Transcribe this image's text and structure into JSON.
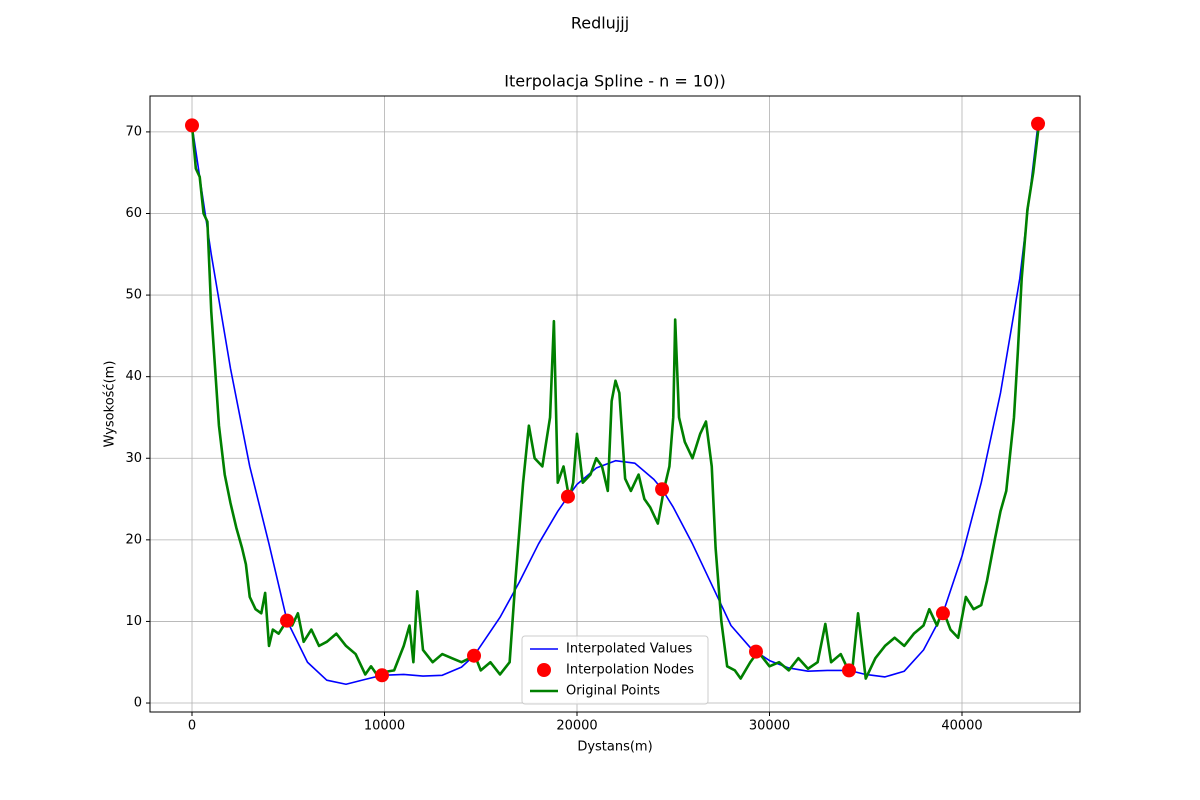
{
  "chart_data": {
    "type": "line",
    "suptitle": "Redlujjj",
    "title": "Iterpolacja Spline - n = 10))",
    "x_label": "Dystans(m)",
    "y_label": "Wysokość(m)",
    "xlim": [
      -2182,
      46130
    ],
    "ylim": [
      -1.1,
      74.4
    ],
    "xticks": [
      0,
      10000,
      20000,
      30000,
      40000
    ],
    "yticks": [
      0,
      10,
      20,
      30,
      40,
      50,
      60,
      70
    ],
    "grid": true,
    "legend": "lower center",
    "series": [
      {
        "name": "Interpolated Values",
        "color": "#0000ff",
        "style": "line",
        "x": [
          0,
          1000,
          2000,
          3000,
          4000,
          4935,
          6000,
          7000,
          8000,
          9000,
          9870,
          11000,
          12000,
          13000,
          14000,
          14650,
          16000,
          17000,
          18000,
          19000,
          19530,
          20000,
          21000,
          22000,
          23000,
          24000,
          24420,
          25000,
          26000,
          27000,
          28000,
          29000,
          29300,
          30000,
          31000,
          32000,
          33000,
          34130,
          35000,
          36000,
          37000,
          38000,
          39010,
          40000,
          41000,
          42000,
          43000,
          43950
        ],
        "values": [
          70.8,
          55,
          41,
          29,
          19.5,
          10.1,
          5,
          2.8,
          2.3,
          2.9,
          3.4,
          3.5,
          3.3,
          3.4,
          4.4,
          5.8,
          10.5,
          14.8,
          19.5,
          23.5,
          25.3,
          26.8,
          28.8,
          29.7,
          29.4,
          27.4,
          26.2,
          24,
          19.5,
          14.5,
          9.5,
          6.8,
          6.3,
          5.2,
          4.3,
          3.9,
          4.0,
          4.0,
          3.5,
          3.2,
          3.9,
          6.5,
          11.0,
          18,
          27,
          38,
          52,
          71.0
        ]
      },
      {
        "name": "Interpolation Nodes",
        "color": "#ff0000",
        "style": "markers",
        "x": [
          0,
          4935,
          9870,
          14650,
          19530,
          24420,
          29300,
          34130,
          39010,
          43950
        ],
        "values": [
          70.8,
          10.1,
          3.4,
          5.8,
          25.3,
          26.2,
          6.3,
          4.0,
          11.0,
          71.0
        ]
      },
      {
        "name": "Original Points",
        "color": "#008000",
        "style": "line",
        "x": [
          0,
          200,
          400,
          600,
          800,
          1000,
          1200,
          1400,
          1700,
          2000,
          2300,
          2600,
          2800,
          3000,
          3300,
          3600,
          3800,
          4000,
          4200,
          4500,
          4900,
          5200,
          5500,
          5800,
          6200,
          6600,
          7000,
          7500,
          8000,
          8500,
          9000,
          9300,
          9600,
          10000,
          10500,
          11000,
          11300,
          11500,
          11700,
          12000,
          12500,
          13000,
          13500,
          14000,
          14700,
          15000,
          15500,
          16000,
          16500,
          16800,
          17200,
          17500,
          17800,
          18200,
          18600,
          18800,
          19000,
          19300,
          19600,
          19800,
          20000,
          20300,
          20700,
          21000,
          21300,
          21600,
          21800,
          22000,
          22200,
          22500,
          22800,
          23200,
          23500,
          23800,
          24200,
          24500,
          24800,
          25000,
          25100,
          25300,
          25600,
          26000,
          26400,
          26700,
          27000,
          27200,
          27500,
          27800,
          28200,
          28500,
          29000,
          29400,
          30000,
          30500,
          31000,
          31500,
          32000,
          32500,
          32900,
          33200,
          33700,
          34000,
          34300,
          34600,
          35000,
          35500,
          36000,
          36500,
          37000,
          37500,
          38000,
          38300,
          38700,
          39000,
          39400,
          39800,
          40200,
          40600,
          41000,
          41300,
          41700,
          42000,
          42300,
          42700,
          42900,
          43100,
          43400,
          43700,
          44000
        ],
        "values": [
          70.8,
          65.5,
          64.5,
          60,
          59,
          48,
          41,
          34,
          28,
          24.5,
          21.5,
          19,
          17,
          13,
          11.5,
          11,
          13.5,
          7,
          9,
          8.5,
          10,
          9.5,
          11,
          7.5,
          9,
          7,
          7.5,
          8.5,
          7,
          6,
          3.5,
          4.5,
          3.5,
          3.8,
          4.0,
          7,
          9.5,
          5,
          13.7,
          6.5,
          5,
          6,
          5.5,
          5.0,
          5.8,
          4,
          5,
          3.5,
          5,
          15,
          27,
          34,
          30,
          29,
          35,
          46.8,
          27,
          29,
          25,
          27,
          33,
          27,
          28,
          30,
          29,
          26,
          37,
          39.5,
          38,
          27.5,
          26,
          28,
          25,
          24,
          22,
          26,
          29,
          35,
          47,
          35,
          32,
          30,
          33,
          34.5,
          29,
          19,
          10,
          4.5,
          4,
          3,
          5,
          6.3,
          4.5,
          5,
          4,
          5.5,
          4.2,
          5,
          9.7,
          5,
          6,
          4.5,
          4,
          11,
          3,
          5.5,
          7,
          8,
          7,
          8.5,
          9.5,
          11.5,
          9.5,
          11.5,
          9,
          8,
          13,
          11.5,
          12,
          15,
          20,
          23.5,
          26,
          35,
          43,
          52,
          60.5,
          65,
          71
        ]
      }
    ]
  }
}
